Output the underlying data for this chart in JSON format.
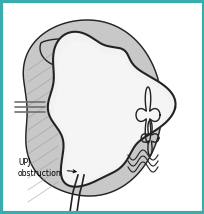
{
  "background_color": "#5bbfc0",
  "border_color": "#3aacac",
  "fig_bg": "#5bbfc0",
  "label_text": "UPJ\nobstruction",
  "label_fontsize": 5.5,
  "outline_color": "#222222",
  "kidney_fill": "#b0b0b0",
  "kidney_mid": "#c8c8c8",
  "inner_fill": "#e8e8e8",
  "inner_bright": "#f2f2f2",
  "pelvis_dark": "#909090",
  "ureter_color": "#555555"
}
